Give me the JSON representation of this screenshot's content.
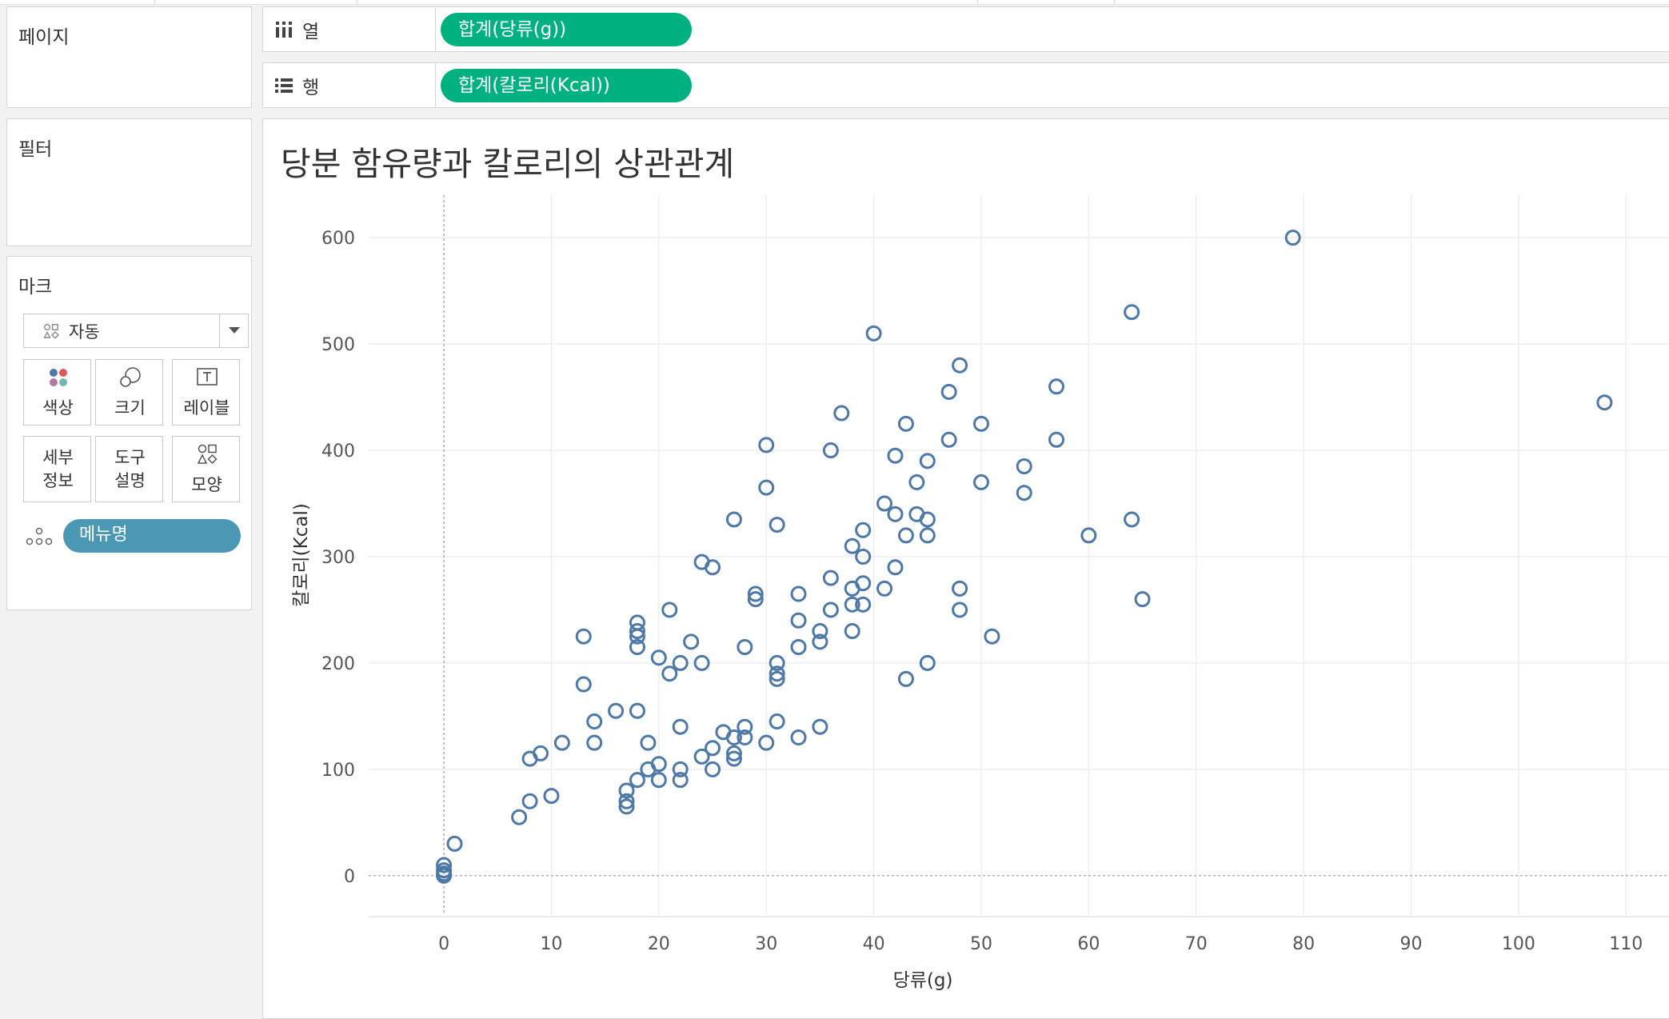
{
  "panels": {
    "pages": "페이지",
    "filters": "필터",
    "marks": "마크"
  },
  "shelves": {
    "columns": {
      "label": "열",
      "icon": "columns-icon",
      "pill": "합계(당류(g))"
    },
    "rows": {
      "label": "행",
      "icon": "rows-icon",
      "pill": "합계(칼로리(Kcal))"
    }
  },
  "marks_card": {
    "mark_type": "자동",
    "buttons": {
      "color": "색상",
      "size": "크기",
      "label": "레이블",
      "detail_1": "세부",
      "detail_2": "정보",
      "tooltip_1": "도구",
      "tooltip_2": "설명",
      "shape": "모양"
    },
    "detail_field": "메뉴명"
  },
  "viz": {
    "title": "당분 함유량과 칼로리의 상관관계"
  },
  "colors": {
    "pill_green": "#00b180",
    "pill_blue": "#4b98b5",
    "mark": "#4e79a7"
  },
  "chart_data": {
    "type": "scatter",
    "title": "당분 함유량과 칼로리의 상관관계",
    "xlabel": "당류(g)",
    "ylabel": "칼로리(Kcal)",
    "xlim": [
      -7,
      114
    ],
    "ylim": [
      -37,
      640
    ],
    "xticks": [
      0,
      10,
      20,
      30,
      40,
      50,
      60,
      70,
      80,
      90,
      100,
      110
    ],
    "yticks": [
      0,
      100,
      200,
      300,
      400,
      500,
      600
    ],
    "grid": true,
    "marker": "hollow-circle",
    "points": [
      [
        0,
        0
      ],
      [
        0,
        5
      ],
      [
        0,
        10
      ],
      [
        0,
        2
      ],
      [
        1,
        30
      ],
      [
        7,
        55
      ],
      [
        8,
        70
      ],
      [
        8,
        110
      ],
      [
        9,
        115
      ],
      [
        10,
        75
      ],
      [
        11,
        125
      ],
      [
        13,
        180
      ],
      [
        13,
        225
      ],
      [
        14,
        145
      ],
      [
        14,
        125
      ],
      [
        16,
        155
      ],
      [
        17,
        80
      ],
      [
        17,
        70
      ],
      [
        17,
        65
      ],
      [
        18,
        90
      ],
      [
        18,
        155
      ],
      [
        18,
        215
      ],
      [
        18,
        225
      ],
      [
        18,
        230
      ],
      [
        18,
        238
      ],
      [
        19,
        100
      ],
      [
        19,
        125
      ],
      [
        20,
        90
      ],
      [
        20,
        105
      ],
      [
        20,
        205
      ],
      [
        21,
        190
      ],
      [
        21,
        250
      ],
      [
        22,
        90
      ],
      [
        22,
        100
      ],
      [
        22,
        140
      ],
      [
        22,
        200
      ],
      [
        23,
        220
      ],
      [
        24,
        112
      ],
      [
        24,
        200
      ],
      [
        24,
        295
      ],
      [
        25,
        100
      ],
      [
        25,
        120
      ],
      [
        25,
        290
      ],
      [
        26,
        135
      ],
      [
        27,
        110
      ],
      [
        27,
        115
      ],
      [
        27,
        130
      ],
      [
        27,
        335
      ],
      [
        28,
        130
      ],
      [
        28,
        140
      ],
      [
        28,
        215
      ],
      [
        29,
        260
      ],
      [
        29,
        265
      ],
      [
        30,
        125
      ],
      [
        30,
        365
      ],
      [
        30,
        405
      ],
      [
        31,
        145
      ],
      [
        31,
        185
      ],
      [
        31,
        190
      ],
      [
        31,
        200
      ],
      [
        31,
        330
      ],
      [
        33,
        130
      ],
      [
        33,
        215
      ],
      [
        33,
        240
      ],
      [
        33,
        265
      ],
      [
        35,
        140
      ],
      [
        35,
        220
      ],
      [
        35,
        230
      ],
      [
        36,
        250
      ],
      [
        36,
        280
      ],
      [
        36,
        400
      ],
      [
        37,
        435
      ],
      [
        38,
        230
      ],
      [
        38,
        255
      ],
      [
        38,
        270
      ],
      [
        38,
        310
      ],
      [
        39,
        255
      ],
      [
        39,
        275
      ],
      [
        39,
        300
      ],
      [
        39,
        325
      ],
      [
        40,
        510
      ],
      [
        41,
        270
      ],
      [
        41,
        350
      ],
      [
        42,
        290
      ],
      [
        42,
        340
      ],
      [
        42,
        395
      ],
      [
        43,
        185
      ],
      [
        43,
        320
      ],
      [
        43,
        425
      ],
      [
        44,
        340
      ],
      [
        44,
        370
      ],
      [
        45,
        200
      ],
      [
        45,
        320
      ],
      [
        45,
        335
      ],
      [
        45,
        390
      ],
      [
        47,
        410
      ],
      [
        47,
        455
      ],
      [
        48,
        250
      ],
      [
        48,
        270
      ],
      [
        48,
        480
      ],
      [
        50,
        370
      ],
      [
        50,
        425
      ],
      [
        51,
        225
      ],
      [
        54,
        360
      ],
      [
        54,
        385
      ],
      [
        57,
        410
      ],
      [
        57,
        460
      ],
      [
        60,
        320
      ],
      [
        64,
        335
      ],
      [
        64,
        530
      ],
      [
        65,
        260
      ],
      [
        79,
        600
      ],
      [
        108,
        445
      ]
    ]
  }
}
